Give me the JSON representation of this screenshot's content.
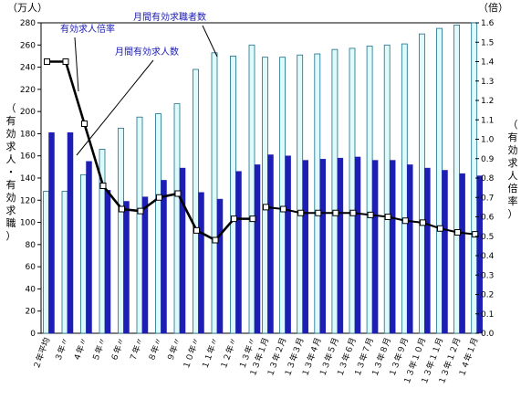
{
  "chart_data": {
    "type": "bar",
    "left_unit": "（万人）",
    "right_unit": "（倍）",
    "left_axis_label": "（有効求人・有効求職）",
    "right_axis_label": "（有効求人倍率）",
    "left_ticks": [
      "0",
      "20",
      "40",
      "60",
      "80",
      "100",
      "120",
      "140",
      "160",
      "180",
      "200",
      "220",
      "240",
      "260",
      "280"
    ],
    "right_ticks": [
      "0.0",
      "0.1",
      "0.2",
      "0.3",
      "0.4",
      "0.5",
      "0.6",
      "0.7",
      "0.8",
      "0.9",
      "1.0",
      "1.1",
      "1.2",
      "1.3",
      "1.4",
      "1.5",
      "1.6"
    ],
    "ylim_left": [
      0,
      280
    ],
    "ylim_right": [
      0,
      1.6
    ],
    "annual": {
      "categories": [
        "２年平均",
        "３年〃",
        "４年〃",
        "５年〃",
        "６年〃",
        "７年〃",
        "８年〃",
        "９年〃",
        "１０年〃",
        "１１年〃",
        "１２年〃",
        "１３年〃"
      ],
      "seekers": [
        128,
        128,
        143,
        166,
        185,
        195,
        198,
        207,
        238,
        253,
        250,
        260
      ],
      "openings": [
        181,
        181,
        155,
        129,
        119,
        123,
        138,
        149,
        127,
        121,
        146,
        152
      ],
      "ratio": [
        1.4,
        1.4,
        1.08,
        0.76,
        0.64,
        0.63,
        0.7,
        0.72,
        0.53,
        0.48,
        0.59,
        0.59
      ]
    },
    "monthly": {
      "categories": [
        "１３年１月",
        "１３年２月",
        "１３年３月",
        "１３年４月",
        "１３年５月",
        "１３年６月",
        "１３年７月",
        "１３年８月",
        "１３年９月",
        "１３年１０月",
        "１３年１１月",
        "１３年１２月",
        "１４年１月"
      ],
      "seekers": [
        249,
        249,
        251,
        252,
        256,
        257,
        259,
        260,
        261,
        270,
        275,
        278,
        280
      ],
      "openings": [
        161,
        160,
        156,
        157,
        158,
        159,
        156,
        156,
        152,
        149,
        147,
        144,
        142
      ],
      "ratio": [
        0.65,
        0.64,
        0.62,
        0.62,
        0.62,
        0.62,
        0.61,
        0.6,
        0.58,
        0.57,
        0.54,
        0.52,
        0.51
      ]
    },
    "series_labels": {
      "ratio": "有効求人倍率",
      "openings": "月間有効求人数",
      "seekers": "月間有効求職者数"
    },
    "colors": {
      "seekers_fill": "#dffafa",
      "seekers_stroke": "#1a6f8a",
      "openings_fill": "#1e1eb4",
      "ratio_line": "#000000"
    }
  }
}
